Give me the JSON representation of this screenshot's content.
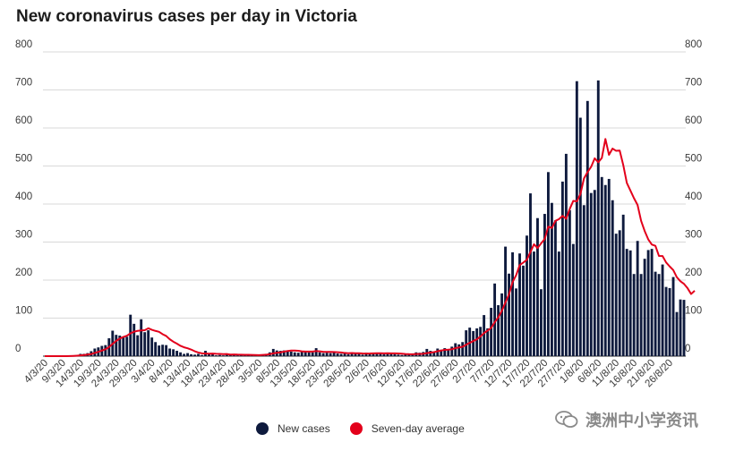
{
  "chart_data": {
    "type": "bar",
    "title": "New coronavirus cases per day in Victoria",
    "ylim": [
      0,
      800
    ],
    "yticks": [
      0,
      100,
      200,
      300,
      400,
      500,
      600,
      700,
      800
    ],
    "xtick_labels": [
      "4/3/20",
      "9/3/20",
      "14/3/20",
      "19/3/20",
      "24/3/20",
      "29/3/20",
      "3/4/20",
      "8/4/20",
      "13/4/20",
      "18/4/20",
      "23/4/20",
      "28/4/20",
      "3/5/20",
      "8/5/20",
      "13/5/20",
      "18/5/20",
      "23/5/20",
      "28/5/20",
      "2/6/20",
      "7/6/20",
      "12/6/20",
      "17/6/20",
      "22/6/20",
      "27/6/20",
      "2/7/20",
      "7/7/20",
      "12/7/20",
      "17/7/20",
      "22/7/20",
      "27/7/20",
      "1/8/20",
      "6/8/20",
      "11/8/20",
      "16/8/20",
      "21/8/20",
      "26/8/20"
    ],
    "grid": true,
    "legend_position": "bottom",
    "series": [
      {
        "name": "New cases",
        "type": "bar",
        "color": "#0e1a3d",
        "values": [
          0,
          0,
          0,
          0,
          0,
          0,
          0,
          0,
          2,
          3,
          6,
          6,
          8,
          13,
          20,
          23,
          27,
          29,
          47,
          67,
          56,
          54,
          51,
          51,
          109,
          85,
          55,
          97,
          63,
          68,
          49,
          37,
          28,
          30,
          29,
          20,
          18,
          14,
          10,
          6,
          8,
          5,
          4,
          6,
          3,
          14,
          6,
          6,
          2,
          3,
          2,
          4,
          5,
          5,
          2,
          3,
          1,
          3,
          4,
          3,
          2,
          3,
          6,
          10,
          19,
          15,
          14,
          15,
          14,
          12,
          10,
          9,
          14,
          11,
          10,
          10,
          21,
          10,
          8,
          9,
          8,
          11,
          7,
          6,
          7,
          5,
          8,
          8,
          7,
          4,
          9,
          7,
          9,
          9,
          8,
          5,
          7,
          6,
          5,
          4,
          3,
          4,
          5,
          7,
          10,
          9,
          11,
          19,
          14,
          12,
          20,
          17,
          21,
          18,
          25,
          34,
          31,
          37,
          68,
          75,
          66,
          73,
          77,
          108,
          73,
          127,
          191,
          134,
          165,
          288,
          217,
          273,
          178,
          270,
          238,
          317,
          428,
          275,
          363,
          176,
          374,
          484,
          403,
          357,
          275,
          459,
          532,
          384,
          295,
          723,
          627,
          397,
          671,
          429,
          437,
          725,
          471,
          450,
          466,
          410,
          322,
          331,
          372,
          282,
          278,
          216,
          303,
          216,
          256,
          279,
          282,
          222,
          216,
          241,
          182,
          179,
          208,
          116,
          149,
          148
        ]
      },
      {
        "name": "Seven-day average",
        "type": "line",
        "color": "#e3001b",
        "values": [
          0,
          0,
          0,
          0,
          0,
          0,
          0,
          0.3,
          0.7,
          1.1,
          2.0,
          2.9,
          4.0,
          5.4,
          8.3,
          11.3,
          14.7,
          18.0,
          23.8,
          32.3,
          40.0,
          46.3,
          50.4,
          53.7,
          60.0,
          64.2,
          66.4,
          67.6,
          68.3,
          73.3,
          69.3,
          66.4,
          64.0,
          57.7,
          53.1,
          44.4,
          38.0,
          32.9,
          27.1,
          23.3,
          20.7,
          17.3,
          12.9,
          9.6,
          7.3,
          6.9,
          6.6,
          6.9,
          6.3,
          6.0,
          5.4,
          5.6,
          4.1,
          4.4,
          4.0,
          3.9,
          3.6,
          3.4,
          3.3,
          3.0,
          2.7,
          3.1,
          3.7,
          5.2,
          7.3,
          8.9,
          9.9,
          11.9,
          13.6,
          14.7,
          14.7,
          14.1,
          12.7,
          12.1,
          12.0,
          12.0,
          13.4,
          12.7,
          11.6,
          11.1,
          11.1,
          10.9,
          10.3,
          9.6,
          8.4,
          7.8,
          8.2,
          7.6,
          7.6,
          7.0,
          6.9,
          7.0,
          7.4,
          7.6,
          7.6,
          7.3,
          7.7,
          7.3,
          7.4,
          7.1,
          6.4,
          5.7,
          5.2,
          5.0,
          5.6,
          5.8,
          6.3,
          8.0,
          9.4,
          10.7,
          12.9,
          14.7,
          16.6,
          17.1,
          18.1,
          21.0,
          22.9,
          24.6,
          30.0,
          35.1,
          39.6,
          44.3,
          51.6,
          60.6,
          67.1,
          74.1,
          89.3,
          101.7,
          119.4,
          141.0,
          162.7,
          194.6,
          212.7,
          239.6,
          246.1,
          253.3,
          273.7,
          294.3,
          284.3,
          296.6,
          308.3,
          340.6,
          336.9,
          355.7,
          360.3,
          369.0,
          361.1,
          386.9,
          408.3,
          407.0,
          426.4,
          467.4,
          484.1,
          497.7,
          520.1,
          509.7,
          521.3,
          571.0,
          529.4,
          545.8,
          539.9,
          540.6,
          502.4,
          455.4,
          435.4,
          415.3,
          397.6,
          355.7,
          328.9,
          307.0,
          293.3,
          290.1,
          263.4,
          263.3,
          246.3,
          235.9,
          226.3,
          207.6,
          196.9,
          190.1,
          178.7,
          163.4,
          172.1
        ]
      }
    ]
  },
  "legend": {
    "items": [
      {
        "label": "New cases",
        "color": "#0e1a3d"
      },
      {
        "label": "Seven-day average",
        "color": "#e3001b"
      }
    ]
  },
  "watermark": {
    "text": "澳洲中小学资讯"
  }
}
